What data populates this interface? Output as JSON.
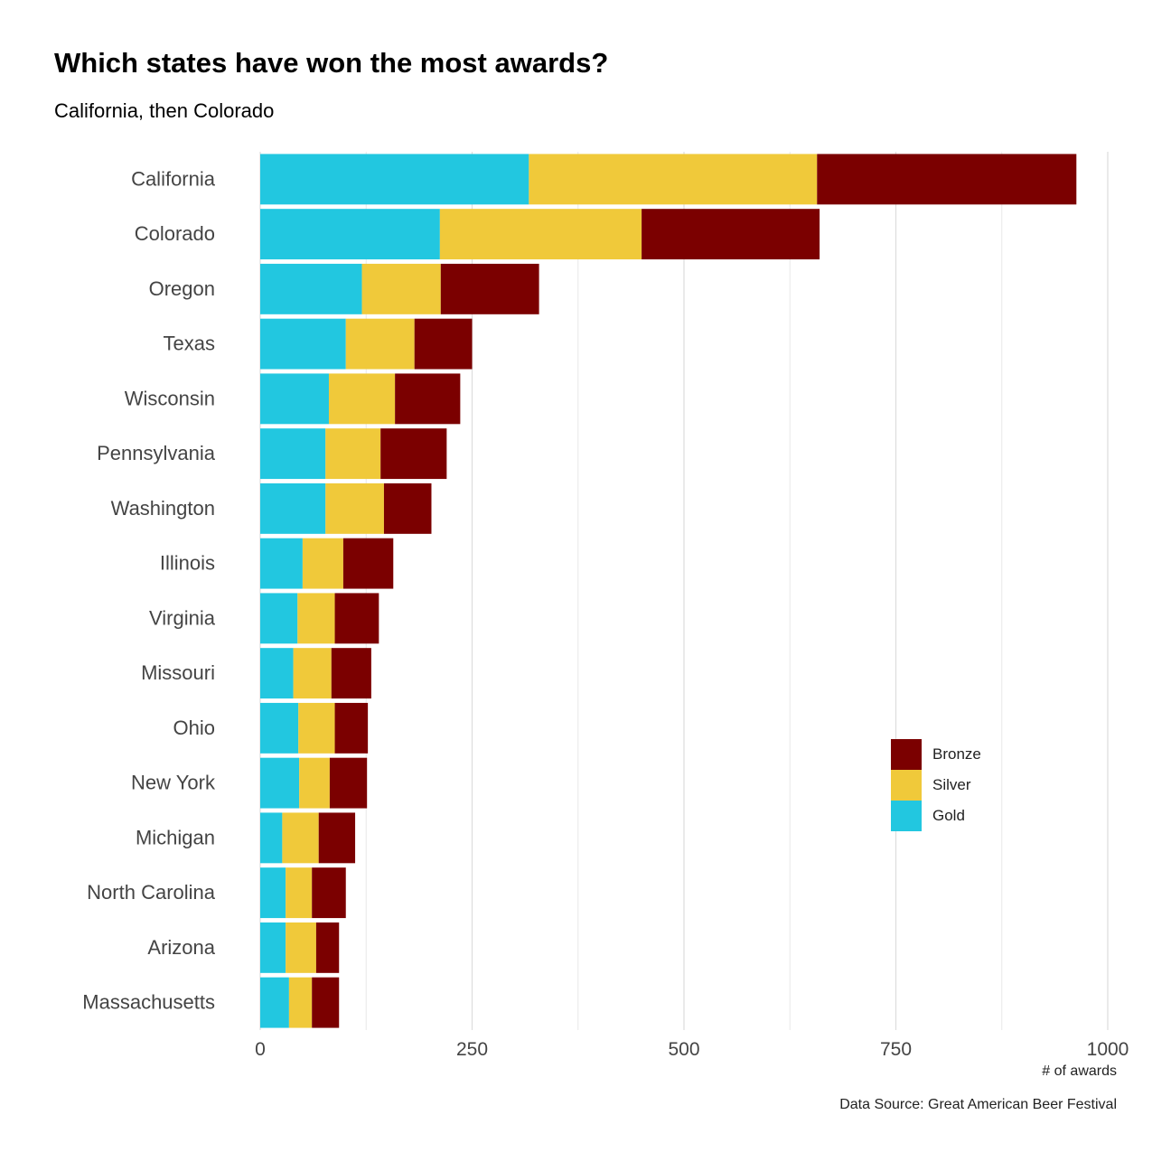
{
  "title": "Which states have won the most awards?",
  "subtitle": "California, then Colorado",
  "caption": "Data Source: Great American Beer Festival",
  "legend": [
    {
      "name": "Bronze",
      "color": "#7b0000"
    },
    {
      "name": "Silver",
      "color": "#f0c93a"
    },
    {
      "name": "Gold",
      "color": "#22c7e0"
    }
  ],
  "chart_data": {
    "type": "bar",
    "orientation": "horizontal",
    "stacked": true,
    "title": "Which states have won the most awards?",
    "subtitle": "California, then Colorado",
    "xlabel": "# of awards",
    "ylabel": "",
    "xlim": [
      0,
      1000
    ],
    "xticks": [
      0,
      250,
      500,
      750,
      1000
    ],
    "grid": "vertical",
    "legend_position": "right",
    "categories": [
      "California",
      "Colorado",
      "Oregon",
      "Texas",
      "Wisconsin",
      "Pennsylvania",
      "Washington",
      "Illinois",
      "Virginia",
      "Missouri",
      "Ohio",
      "New York",
      "Michigan",
      "North Carolina",
      "Arizona",
      "Massachusetts"
    ],
    "series": [
      {
        "name": "Gold",
        "color": "#22c7e0",
        "values": [
          317,
          212,
          120,
          101,
          81,
          77,
          77,
          50,
          44,
          39,
          45,
          46,
          26,
          30,
          30,
          34
        ]
      },
      {
        "name": "Silver",
        "color": "#f0c93a",
        "values": [
          340,
          238,
          93,
          81,
          78,
          65,
          69,
          48,
          44,
          45,
          43,
          36,
          43,
          31,
          36,
          27
        ]
      },
      {
        "name": "Bronze",
        "color": "#7b0000",
        "values": [
          306,
          210,
          116,
          68,
          77,
          78,
          56,
          59,
          52,
          47,
          39,
          44,
          43,
          40,
          27,
          32
        ]
      }
    ]
  }
}
